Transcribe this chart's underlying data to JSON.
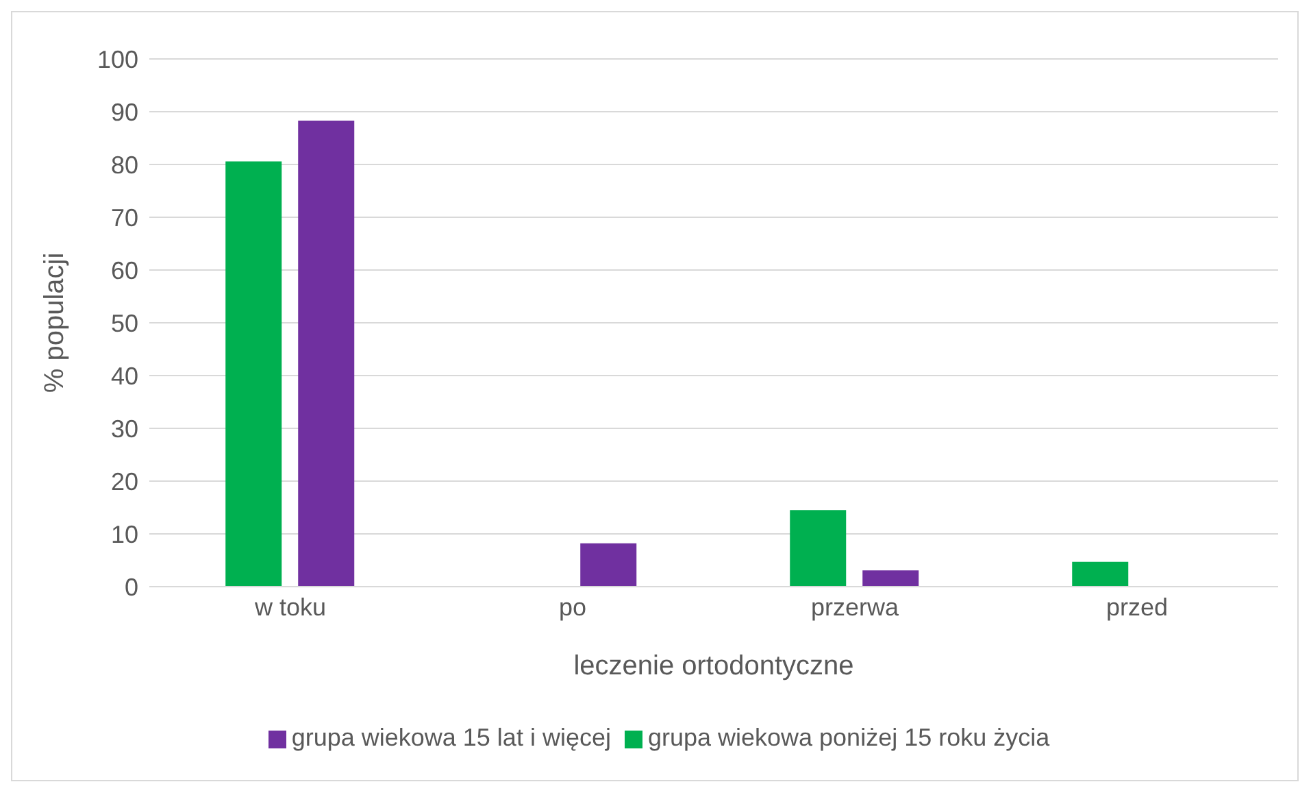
{
  "chart_data": {
    "type": "bar",
    "xlabel": "leczenie ortodontyczne",
    "ylabel": "% populacji",
    "categories": [
      "w toku",
      "po",
      "przerwa",
      "przed"
    ],
    "series": [
      {
        "name": "grupa wiekowa poniżej 15 roku życia",
        "color": "#00b050",
        "values": [
          80.6,
          0,
          14.5,
          4.7
        ]
      },
      {
        "name": "grupa wiekowa 15 lat i więcej",
        "color": "#7030a0",
        "values": [
          88.3,
          8.2,
          3.1,
          0
        ]
      }
    ],
    "ylim": [
      0,
      100
    ],
    "yticks": [
      0,
      10,
      20,
      30,
      40,
      50,
      60,
      70,
      80,
      90,
      100
    ],
    "grid": "y",
    "legend": "bottom"
  }
}
